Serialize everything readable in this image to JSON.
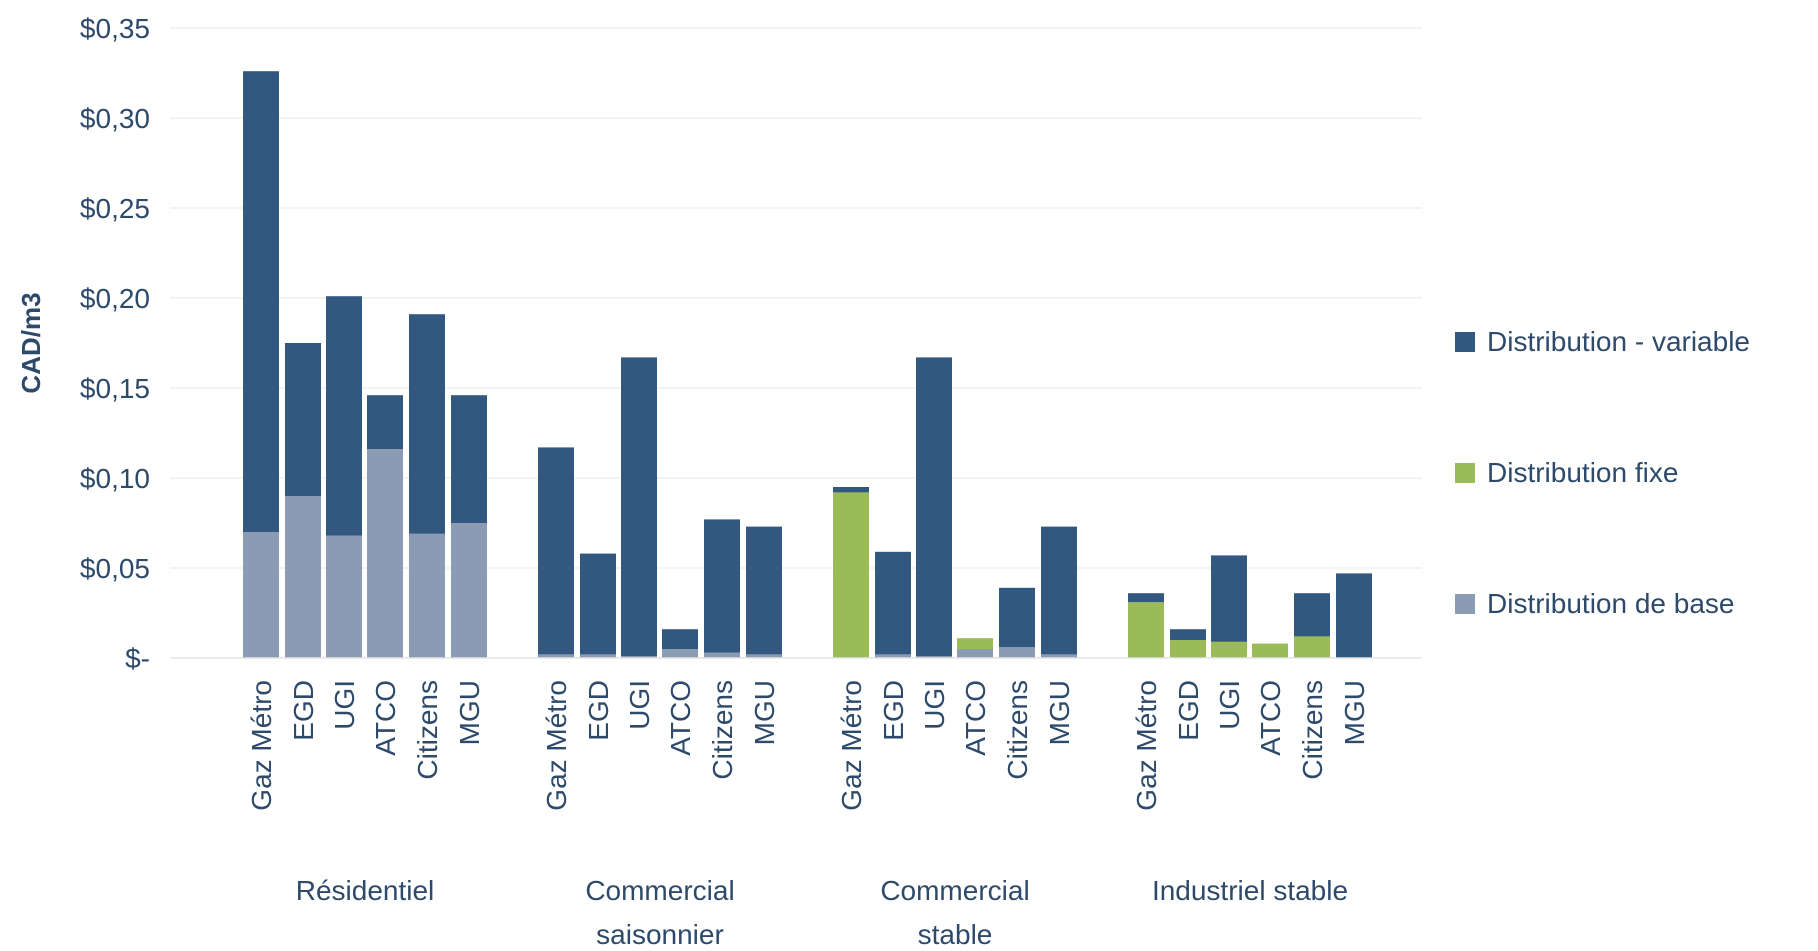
{
  "chart_data": {
    "type": "bar",
    "stacked": true,
    "ylabel": "CAD/m3",
    "ylim": [
      0,
      0.35
    ],
    "y_ticks": [
      {
        "value": 0,
        "label": "$-"
      },
      {
        "value": 0.05,
        "label": "$0,05"
      },
      {
        "value": 0.1,
        "label": "$0,10"
      },
      {
        "value": 0.15,
        "label": "$0,15"
      },
      {
        "value": 0.2,
        "label": "$0,20"
      },
      {
        "value": 0.25,
        "label": "$0,25"
      },
      {
        "value": 0.3,
        "label": "$0,30"
      },
      {
        "value": 0.35,
        "label": "$0,35"
      }
    ],
    "grid": true,
    "legend_position": "right",
    "groups": [
      {
        "label": [
          "Résidentiel"
        ],
        "categories": [
          "Gaz Métro",
          "EGD",
          "UGI",
          "ATCO",
          "Citizens",
          "MGU"
        ]
      },
      {
        "label": [
          "Commercial",
          "saisonnier"
        ],
        "categories": [
          "Gaz Métro",
          "EGD",
          "UGI",
          "ATCO",
          "Citizens",
          "MGU"
        ]
      },
      {
        "label": [
          "Commercial",
          "stable"
        ],
        "categories": [
          "Gaz Métro",
          "EGD",
          "UGI",
          "ATCO",
          "Citizens",
          "MGU"
        ]
      },
      {
        "label": [
          "Industriel stable"
        ],
        "categories": [
          "Gaz Métro",
          "EGD",
          "UGI",
          "ATCO",
          "Citizens",
          "MGU"
        ]
      }
    ],
    "series": [
      {
        "name": "Distribution de base",
        "color": "#8b9bb4",
        "values": [
          [
            0.07,
            0.09,
            0.068,
            0.116,
            0.069,
            0.075
          ],
          [
            0.002,
            0.002,
            0.001,
            0.005,
            0.003,
            0.002
          ],
          [
            0.0,
            0.002,
            0.001,
            0.005,
            0.006,
            0.002
          ],
          [
            0.0,
            0.0,
            0.0,
            0.0,
            0.0,
            0.0
          ]
        ]
      },
      {
        "name": "Distribution fixe",
        "color": "#9bbb59",
        "values": [
          [
            0,
            0,
            0,
            0,
            0,
            0
          ],
          [
            0,
            0,
            0,
            0,
            0,
            0
          ],
          [
            0.092,
            0,
            0,
            0.006,
            0,
            0
          ],
          [
            0.031,
            0.01,
            0.009,
            0.008,
            0.012,
            0
          ]
        ]
      },
      {
        "name": "Distribution - variable",
        "color": "#33587f",
        "values": [
          [
            0.256,
            0.085,
            0.133,
            0.03,
            0.122,
            0.071
          ],
          [
            0.115,
            0.056,
            0.166,
            0.011,
            0.074,
            0.071
          ],
          [
            0.003,
            0.057,
            0.166,
            0.0,
            0.033,
            0.071
          ],
          [
            0.005,
            0.006,
            0.048,
            0.0,
            0.024,
            0.047
          ]
        ]
      }
    ],
    "legend_order": [
      "Distribution - variable",
      "Distribution fixe",
      "Distribution de base"
    ]
  }
}
